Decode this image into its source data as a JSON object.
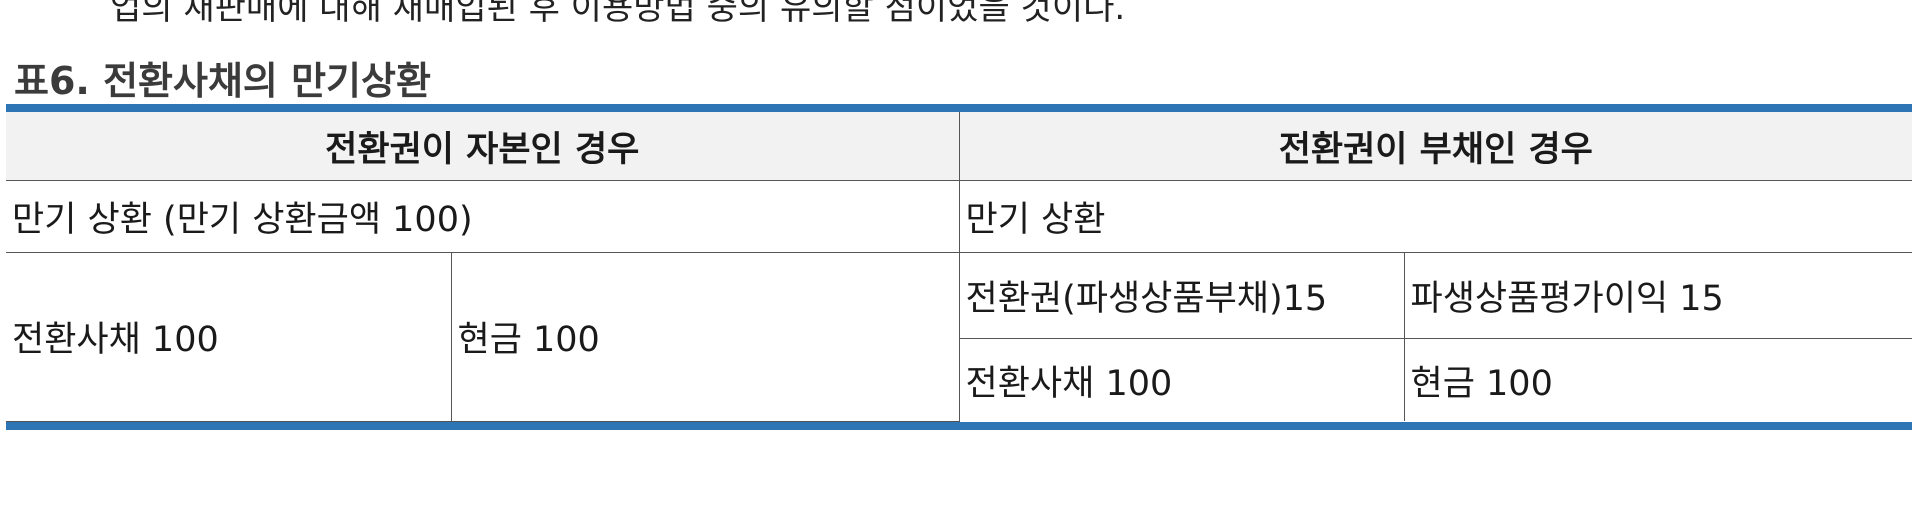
{
  "cut_off_line": "업의 재판매에 대해 재매입된 후 이용방법 중의 유의할 점이었을 것이다.",
  "caption": "표6. 전환사채의 만기상환",
  "table": {
    "headers": [
      "전환권이 자본인 경우",
      "전환권이 부채인 경우"
    ],
    "row_maturity": {
      "equity": "만기 상환 (만기 상환금액 100)",
      "liability": "만기 상환"
    },
    "equity_entry": {
      "debit": "전환사채 100",
      "credit": "현금 100"
    },
    "liability_entries": [
      {
        "debit": "전환권(파생상품부채)15",
        "credit": "파생상품평가이익 15"
      },
      {
        "debit": "전환사채 100",
        "credit": "현금 100"
      }
    ]
  }
}
